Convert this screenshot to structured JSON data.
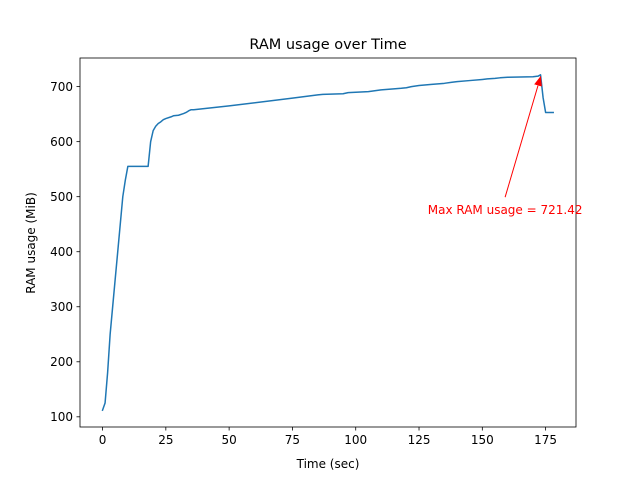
{
  "chart_data": {
    "type": "line",
    "title": "RAM usage over Time",
    "xlabel": "Time (sec)",
    "ylabel": "RAM usage (MiB)",
    "xlim": [
      -8.9,
      187.0
    ],
    "ylim": [
      81.5,
      752.0
    ],
    "xticks": [
      0,
      25,
      50,
      75,
      100,
      125,
      150,
      175
    ],
    "yticks": [
      100,
      200,
      300,
      400,
      500,
      600,
      700
    ],
    "grid": false,
    "series": [
      {
        "color": "#1f77b4",
        "x": [
          0,
          1,
          2,
          3,
          4,
          5,
          6,
          7,
          8,
          9,
          10,
          18,
          19,
          20,
          21,
          22,
          23,
          24,
          25,
          27,
          28,
          30,
          32,
          33,
          34,
          35,
          36,
          50,
          75,
          85,
          87,
          95,
          97,
          105,
          110,
          115,
          118,
          120,
          122,
          125,
          130,
          135,
          138,
          140,
          145,
          150,
          152,
          155,
          157,
          160,
          170,
          172,
          173,
          174,
          175,
          177,
          178
        ],
        "values": [
          112,
          125,
          180,
          250,
          300,
          350,
          400,
          450,
          500,
          530,
          555,
          555,
          600,
          620,
          628,
          633,
          636,
          640,
          642,
          645,
          647,
          648,
          651,
          653,
          656,
          658,
          658,
          665,
          679,
          685,
          686,
          687,
          689,
          691,
          694,
          696,
          697,
          698,
          700,
          702,
          704,
          706,
          708,
          709,
          711,
          713,
          714,
          715,
          716,
          717,
          718,
          719,
          721.42,
          680,
          653,
          653,
          653
        ]
      }
    ],
    "annotation": {
      "text": "Max RAM usage = 721.42",
      "color": "#ff0000",
      "xy": [
        173,
        721.42
      ],
      "xytext": [
        159,
        450
      ]
    }
  }
}
